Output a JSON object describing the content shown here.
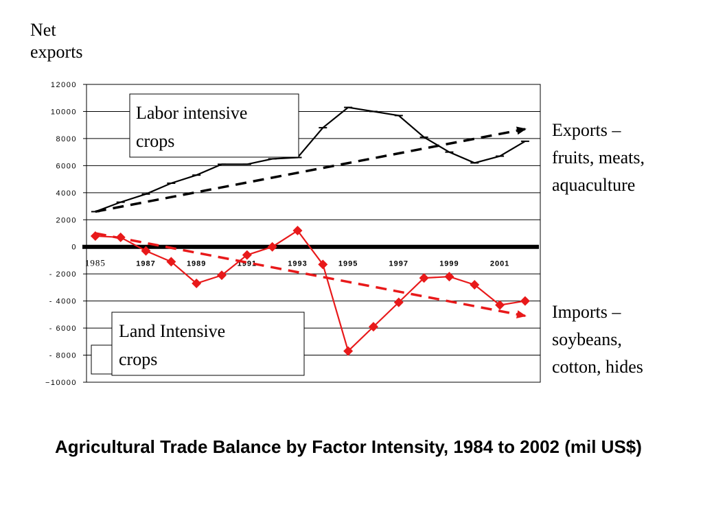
{
  "ylabel": [
    "Net",
    "exports"
  ],
  "annotations": {
    "labor_box": [
      "Labor intensive",
      "crops"
    ],
    "land_box": [
      "Land Intensive",
      "crops"
    ],
    "exports_note": [
      "Exports –",
      "fruits, meats,",
      "aquaculture"
    ],
    "imports_note": [
      "Imports –",
      "soybeans,",
      "cotton, hides"
    ]
  },
  "caption": "Agricultural Trade Balance by Factor Intensity, 1984 to 2002 (mil US$)",
  "colors": {
    "labor": "#000000",
    "land": "#e8191a",
    "zero_line": "#000000"
  },
  "chart_data": {
    "type": "line",
    "x": [
      1985,
      1986,
      1987,
      1988,
      1989,
      1990,
      1991,
      1992,
      1993,
      1994,
      1995,
      1996,
      1997,
      1998,
      1999,
      2000,
      2001,
      2002
    ],
    "x_tick_labels": [
      "1985",
      "1987",
      "1989",
      "1991",
      "1993",
      "1995",
      "1997",
      "1999",
      "2001"
    ],
    "y_tick_labels": [
      "12000",
      "10000",
      "8000",
      "6000",
      "4000",
      "2000",
      "0",
      "- 2000",
      "- 4000",
      "- 6000",
      "- 8000",
      "−10000"
    ],
    "ylim": [
      -10000,
      12000
    ],
    "grid": true,
    "series": [
      {
        "name": "Labor intensive crops",
        "color": "#000000",
        "marker": "dash",
        "values": [
          2600,
          3300,
          3900,
          4700,
          5300,
          6100,
          6100,
          6500,
          6600,
          8800,
          10300,
          10000,
          9700,
          8100,
          7000,
          6200,
          6700,
          7800
        ]
      },
      {
        "name": "Land Intensive crops",
        "color": "#e8191a",
        "marker": "diamond",
        "values": [
          800,
          700,
          -300,
          -1100,
          -2700,
          -2100,
          -600,
          0,
          1200,
          -1300,
          -7700,
          -5900,
          -4100,
          -2300,
          -2200,
          -2800,
          -4300,
          -4000
        ]
      }
    ],
    "trendlines": [
      {
        "color": "#000000",
        "from": [
          1985,
          2600
        ],
        "to": [
          2002,
          8700
        ]
      },
      {
        "color": "#e8191a",
        "from": [
          1985,
          1000
        ],
        "to": [
          2002,
          -5100
        ]
      }
    ]
  }
}
